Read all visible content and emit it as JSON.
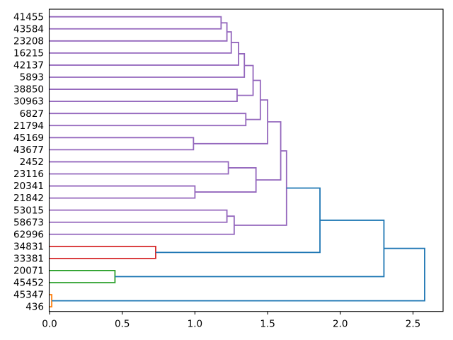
{
  "chart_data": {
    "type": "dendrogram",
    "title": "",
    "xlabel": "",
    "ylabel": "",
    "orientation": "left-labels-root-right",
    "grid": false,
    "legend": null,
    "xlim": [
      0,
      2.71
    ],
    "x_tick_values": [
      0,
      0.5,
      1.0,
      1.5,
      2.0,
      2.5
    ],
    "x_tick_labels": [
      "0.0",
      "0.5",
      "1.0",
      "1.5",
      "2.0",
      "2.5"
    ],
    "leaves": [
      "41455",
      "43584",
      "23208",
      "16215",
      "42137",
      "5893",
      "38850",
      "30963",
      "6827",
      "21794",
      "45169",
      "43677",
      "2452",
      "23116",
      "20341",
      "21842",
      "53015",
      "58673",
      "62996",
      "34831",
      "33381",
      "20071",
      "45452",
      "45347",
      "436"
    ],
    "merges": [
      {
        "id": "n1",
        "children": [
          "41455",
          "43584"
        ],
        "height": 1.18,
        "color": "#9467bd"
      },
      {
        "id": "n2",
        "children": [
          "n1",
          "23208"
        ],
        "height": 1.22,
        "color": "#9467bd"
      },
      {
        "id": "n3",
        "children": [
          "n2",
          "16215"
        ],
        "height": 1.25,
        "color": "#9467bd"
      },
      {
        "id": "n4",
        "children": [
          "n3",
          "42137"
        ],
        "height": 1.3,
        "color": "#9467bd"
      },
      {
        "id": "n5",
        "children": [
          "n4",
          "5893"
        ],
        "height": 1.34,
        "color": "#9467bd"
      },
      {
        "id": "n6",
        "children": [
          "38850",
          "30963"
        ],
        "height": 1.29,
        "color": "#9467bd"
      },
      {
        "id": "n7",
        "children": [
          "n5",
          "n6"
        ],
        "height": 1.4,
        "color": "#9467bd"
      },
      {
        "id": "n8",
        "children": [
          "6827",
          "21794"
        ],
        "height": 1.35,
        "color": "#9467bd"
      },
      {
        "id": "n9",
        "children": [
          "n7",
          "n8"
        ],
        "height": 1.45,
        "color": "#9467bd"
      },
      {
        "id": "n10",
        "children": [
          "45169",
          "43677"
        ],
        "height": 0.99,
        "color": "#9467bd"
      },
      {
        "id": "n11",
        "children": [
          "n9",
          "n10"
        ],
        "height": 1.5,
        "color": "#9467bd"
      },
      {
        "id": "n12",
        "children": [
          "2452",
          "23116"
        ],
        "height": 1.23,
        "color": "#9467bd"
      },
      {
        "id": "n13",
        "children": [
          "20341",
          "21842"
        ],
        "height": 1.0,
        "color": "#9467bd"
      },
      {
        "id": "n14",
        "children": [
          "n12",
          "n13"
        ],
        "height": 1.42,
        "color": "#9467bd"
      },
      {
        "id": "n15",
        "children": [
          "n11",
          "n14"
        ],
        "height": 1.59,
        "color": "#9467bd"
      },
      {
        "id": "n16",
        "children": [
          "53015",
          "58673"
        ],
        "height": 1.22,
        "color": "#9467bd"
      },
      {
        "id": "n17",
        "children": [
          "n16",
          "62996"
        ],
        "height": 1.27,
        "color": "#9467bd"
      },
      {
        "id": "n18",
        "children": [
          "n15",
          "n17"
        ],
        "height": 1.63,
        "color": "#9467bd"
      },
      {
        "id": "n19",
        "children": [
          "34831",
          "33381"
        ],
        "height": 0.73,
        "color": "#d62728"
      },
      {
        "id": "n20",
        "children": [
          "n18",
          "n19"
        ],
        "height": 1.86,
        "color": "#1f77b4"
      },
      {
        "id": "n21",
        "children": [
          "20071",
          "45452"
        ],
        "height": 0.45,
        "color": "#2ca02c"
      },
      {
        "id": "n22",
        "children": [
          "n20",
          "n21"
        ],
        "height": 2.3,
        "color": "#1f77b4"
      },
      {
        "id": "n23",
        "children": [
          "45347",
          "436"
        ],
        "height": 0.015,
        "color": "#ff7f0e"
      },
      {
        "id": "n24",
        "children": [
          "n22",
          "n23"
        ],
        "height": 2.58,
        "color": "#1f77b4"
      }
    ],
    "colors": {
      "above_threshold_links": "#1f77b4",
      "purple_cluster": "#9467bd",
      "red_cluster": "#d62728",
      "green_cluster": "#2ca02c",
      "orange_cluster": "#ff7f0e",
      "axes_frame": "#000000",
      "background": "#ffffff"
    }
  }
}
